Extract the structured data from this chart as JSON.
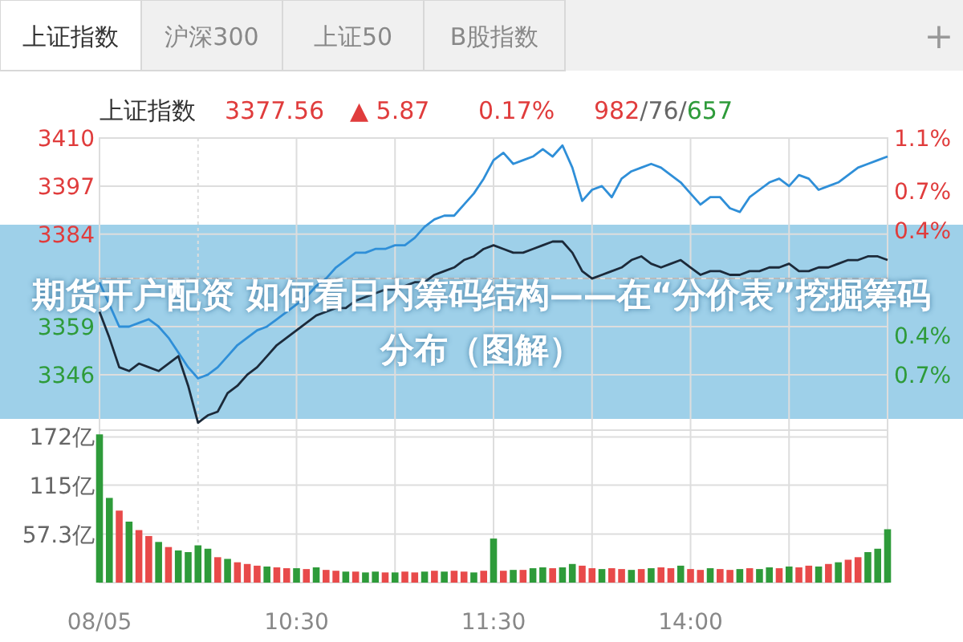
{
  "chart_data": [
    {
      "type": "line",
      "title": "上证指数",
      "annotations": [
        "上证指数",
        "沪深300",
        "上证50",
        "B股指数",
        "+",
        "3377.56",
        "▲ 5.87",
        "0.17%",
        "982/76/657",
        "期货开户配资 如何看日内筹码结构——在“分价表”挖掘筹码分布（图解）"
      ],
      "categories": [
        null,
        null,
        null,
        null,
        null,
        null,
        null,
        null,
        null,
        null,
        null,
        null,
        null,
        null,
        null,
        null,
        null,
        null,
        null,
        null,
        null,
        null,
        null,
        null,
        null,
        null,
        null,
        null,
        null,
        null,
        null,
        null,
        null,
        null,
        null,
        null,
        null,
        null,
        null,
        null,
        null,
        null,
        null,
        null,
        null,
        null,
        null,
        null,
        null,
        null,
        null,
        null,
        null,
        null,
        null,
        null,
        null,
        null,
        null,
        null,
        null,
        null,
        null,
        null,
        null,
        null,
        null,
        null,
        null,
        null,
        null,
        null,
        null,
        null,
        null,
        null,
        null,
        null,
        null,
        null,
        null
      ],
      "series": [
        {
          "color": "#2f8fd8",
          "values": [
            3371,
            3365,
            3359,
            3359,
            3360,
            3361,
            3359,
            3356,
            3352,
            3348,
            3345,
            3346,
            3348,
            3351,
            3354,
            3356,
            3358,
            3359,
            3361,
            3363,
            3365,
            3367,
            3370,
            3372,
            3375,
            3377,
            3379,
            3379,
            3380,
            3380,
            3381,
            3381,
            3383,
            3386,
            3388,
            3389,
            3389,
            3392,
            3395,
            3399,
            3404,
            3406,
            3403,
            3404,
            3405,
            3407,
            3405,
            3408,
            3402,
            3393,
            3396,
            3397,
            3394,
            3399,
            3401,
            3402,
            3403,
            3402,
            3400,
            3398,
            3395,
            3392,
            3394,
            3394,
            3391,
            3390,
            3394,
            3396,
            3398,
            3399,
            3397,
            3400,
            3399,
            3396,
            3397,
            3398,
            3400,
            3402,
            3403,
            3404,
            3405
          ]
        },
        {
          "color": "#1c2a3a",
          "values": [
            3363,
            3356,
            3348,
            3347,
            3349,
            3348,
            3347,
            3349,
            3351,
            3343,
            3333,
            3335,
            3336,
            3341,
            3343,
            3346,
            3348,
            3351,
            3354,
            3356,
            3358,
            3360,
            3362,
            3363,
            3364,
            3364,
            3366,
            3367,
            3368,
            3369,
            3369,
            3370,
            3371,
            3371,
            3373,
            3374,
            3375,
            3377,
            3378,
            3380,
            3381,
            3380,
            3379,
            3379,
            3380,
            3381,
            3382,
            3382,
            3379,
            3374,
            3372,
            3373,
            3374,
            3375,
            3377,
            3378,
            3376,
            3375,
            3376,
            3377,
            3375,
            3373,
            3374,
            3374,
            3373,
            3373,
            3374,
            3374,
            3375,
            3375,
            3376,
            3374,
            3374,
            3375,
            3375,
            3376,
            3377,
            3377,
            3378,
            3378,
            3377
          ]
        }
      ],
      "ylim": [
        3331,
        3410
      ],
      "yticks": [
        3346,
        3359,
        {
          "value": 3372,
          "label": null
        },
        3384,
        3397,
        3410
      ],
      "y2lim": [
        -1.12,
        1.1
      ],
      "y2ticks": [
        {
          "value": -0.7,
          "label": "0.7%"
        },
        {
          "value": -0.4,
          "label": "0.4%"
        },
        {
          "value": 0.4,
          "label": "0.4%"
        },
        {
          "value": 0.7,
          "label": "0.7%"
        },
        {
          "value": 1.1,
          "label": "1.1%"
        }
      ],
      "ref_lines": [
        {
          "axis": "y",
          "value": 3372,
          "label": null,
          "color": "#bbbbbb",
          "line_style": "dashed"
        }
      ],
      "grid": true,
      "tick_labels": "y"
    },
    {
      "type": "bar",
      "categories": [
        "08/05",
        null,
        null,
        null,
        null,
        null,
        null,
        null,
        null,
        null,
        null,
        null,
        null,
        null,
        null,
        null,
        null,
        null,
        null,
        null,
        "10:30",
        null,
        null,
        null,
        null,
        null,
        null,
        null,
        null,
        null,
        null,
        null,
        null,
        null,
        null,
        null,
        null,
        null,
        null,
        null,
        "11:30",
        null,
        null,
        null,
        null,
        null,
        null,
        null,
        null,
        null,
        null,
        null,
        null,
        null,
        null,
        null,
        null,
        null,
        null,
        null,
        "14:00",
        null,
        null,
        null,
        null,
        null,
        null,
        null,
        null,
        null,
        null,
        null,
        null,
        null,
        null,
        null,
        null,
        null,
        null,
        null,
        null
      ],
      "values": [
        175,
        100,
        85,
        72,
        62,
        55,
        48,
        42,
        38,
        36,
        44,
        40,
        30,
        28,
        24,
        22,
        20,
        19,
        18,
        17,
        17,
        16,
        18,
        15,
        14,
        13,
        13,
        12,
        13,
        12,
        12,
        13,
        12,
        13,
        14,
        13,
        14,
        13,
        12,
        14,
        52,
        14,
        15,
        15,
        17,
        18,
        17,
        18,
        22,
        20,
        17,
        16,
        17,
        16,
        15,
        16,
        17,
        18,
        17,
        20,
        16,
        15,
        17,
        16,
        15,
        16,
        17,
        16,
        18,
        17,
        19,
        18,
        20,
        19,
        22,
        24,
        27,
        30,
        36,
        40,
        63
      ],
      "colors": [
        "#2e9b3a",
        "#2e9b3a",
        "#e84a4a",
        "#2e9b3a",
        "#e84a4a",
        "#e84a4a",
        "#2e9b3a",
        "#e84a4a",
        "#2e9b3a",
        "#2e9b3a",
        "#2e9b3a",
        "#2e9b3a",
        "#e84a4a",
        "#2e9b3a",
        "#e84a4a",
        "#e84a4a",
        "#e84a4a",
        "#2e9b3a",
        "#e84a4a",
        "#e84a4a",
        "#2e9b3a",
        "#e84a4a",
        "#2e9b3a",
        "#e84a4a",
        "#e84a4a",
        "#2e9b3a",
        "#e84a4a",
        "#2e9b3a",
        "#2e9b3a",
        "#e84a4a",
        "#2e9b3a",
        "#e84a4a",
        "#e84a4a",
        "#2e9b3a",
        "#e84a4a",
        "#2e9b3a",
        "#e84a4a",
        "#e84a4a",
        "#2e9b3a",
        "#e84a4a",
        "#2e9b3a",
        "#e84a4a",
        "#2e9b3a",
        "#e84a4a",
        "#2e9b3a",
        "#2e9b3a",
        "#e84a4a",
        "#2e9b3a",
        "#2e9b3a",
        "#e84a4a",
        "#e84a4a",
        "#2e9b3a",
        "#e84a4a",
        "#e84a4a",
        "#2e9b3a",
        "#e84a4a",
        "#2e9b3a",
        "#e84a4a",
        "#e84a4a",
        "#2e9b3a",
        "#e84a4a",
        "#e84a4a",
        "#2e9b3a",
        "#e84a4a",
        "#e84a4a",
        "#2e9b3a",
        "#e84a4a",
        "#2e9b3a",
        "#2e9b3a",
        "#e84a4a",
        "#2e9b3a",
        "#e84a4a",
        "#e84a4a",
        "#2e9b3a",
        "#e84a4a",
        "#2e9b3a",
        "#e84a4a",
        "#e84a4a",
        "#2e9b3a",
        "#2e9b3a",
        "#2e9b3a"
      ],
      "ylim": [
        0,
        180
      ],
      "yticks": [
        {
          "value": 57.3,
          "label": "57.3亿"
        },
        {
          "value": 115,
          "label": "115亿"
        },
        {
          "value": 172,
          "label": "172亿"
        }
      ],
      "grid": true
    }
  ]
}
